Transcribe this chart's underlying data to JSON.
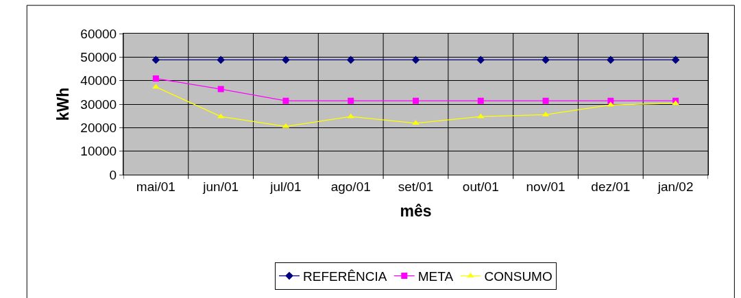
{
  "chart_data": {
    "type": "line",
    "xlabel": "mês",
    "ylabel": "kWh",
    "categories": [
      "mai/01",
      "jun/01",
      "jul/01",
      "ago/01",
      "set/01",
      "out/01",
      "nov/01",
      "dez/01",
      "jan/02"
    ],
    "series": [
      {
        "name": "REFERÊNCIA",
        "color": "#000080",
        "marker": "diamond",
        "values": [
          48800,
          48800,
          48800,
          48800,
          48800,
          48800,
          48800,
          48800,
          48800
        ]
      },
      {
        "name": "META",
        "color": "#ff00ff",
        "marker": "square",
        "values": [
          40900,
          36400,
          31400,
          31400,
          31400,
          31400,
          31400,
          31400,
          31400
        ]
      },
      {
        "name": "CONSUMO",
        "color": "#ffff00",
        "marker": "triangle",
        "values": [
          37300,
          24700,
          20500,
          24700,
          21900,
          24700,
          25500,
          29700,
          30300
        ]
      }
    ],
    "ylim": [
      0,
      60000
    ],
    "yticks": [
      0,
      10000,
      20000,
      30000,
      40000,
      50000,
      60000
    ],
    "grid": true,
    "legend": "bottom",
    "line_style": "solid"
  }
}
